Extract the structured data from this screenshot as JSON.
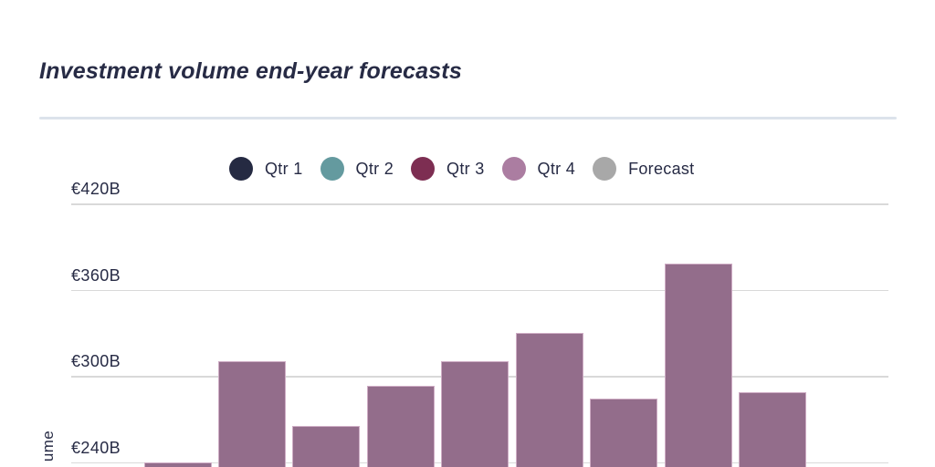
{
  "page": {
    "title": "Investment volume end-year forecasts"
  },
  "colors": {
    "background": "#ffffff",
    "title_text": "#272b45",
    "axis_text": "#272b45",
    "divider": "#dce3eb",
    "gridline": "#d9d9d9",
    "bar_fill": "#936d8b",
    "bar_edge": "#cfadc5"
  },
  "legend": {
    "items": [
      {
        "label": "Qtr 1",
        "color": "#252a42"
      },
      {
        "label": "Qtr 2",
        "color": "#649a9f"
      },
      {
        "label": "Qtr 3",
        "color": "#7d2e52"
      },
      {
        "label": "Qtr 4",
        "color": "#ab7da1"
      },
      {
        "label": "Forecast",
        "color": "#a8a8a8"
      }
    ]
  },
  "chart_data": {
    "type": "bar",
    "title": "Investment volume end-year forecasts",
    "currency": "EUR",
    "unit": "billions of euros",
    "ylabel_visible_fragment": "ume",
    "yticks": [
      {
        "label": "€420B",
        "value": 420
      },
      {
        "label": "€360B",
        "value": 360
      },
      {
        "label": "€300B",
        "value": 300
      },
      {
        "label": "€240B",
        "value": 240
      }
    ],
    "ylim_top": 420,
    "values": [
      240,
      310,
      265,
      293,
      310,
      330,
      284,
      378,
      289
    ],
    "categories": [
      "",
      "",
      "",
      "",
      "",
      "",
      "",
      "",
      ""
    ],
    "x_axis_labels_visible": false,
    "chart_bottom_cropped": true,
    "grid": "horizontal",
    "legend_position": "top",
    "legend_entries": [
      "Qtr 1",
      "Qtr 2",
      "Qtr 3",
      "Qtr 4",
      "Forecast"
    ]
  }
}
